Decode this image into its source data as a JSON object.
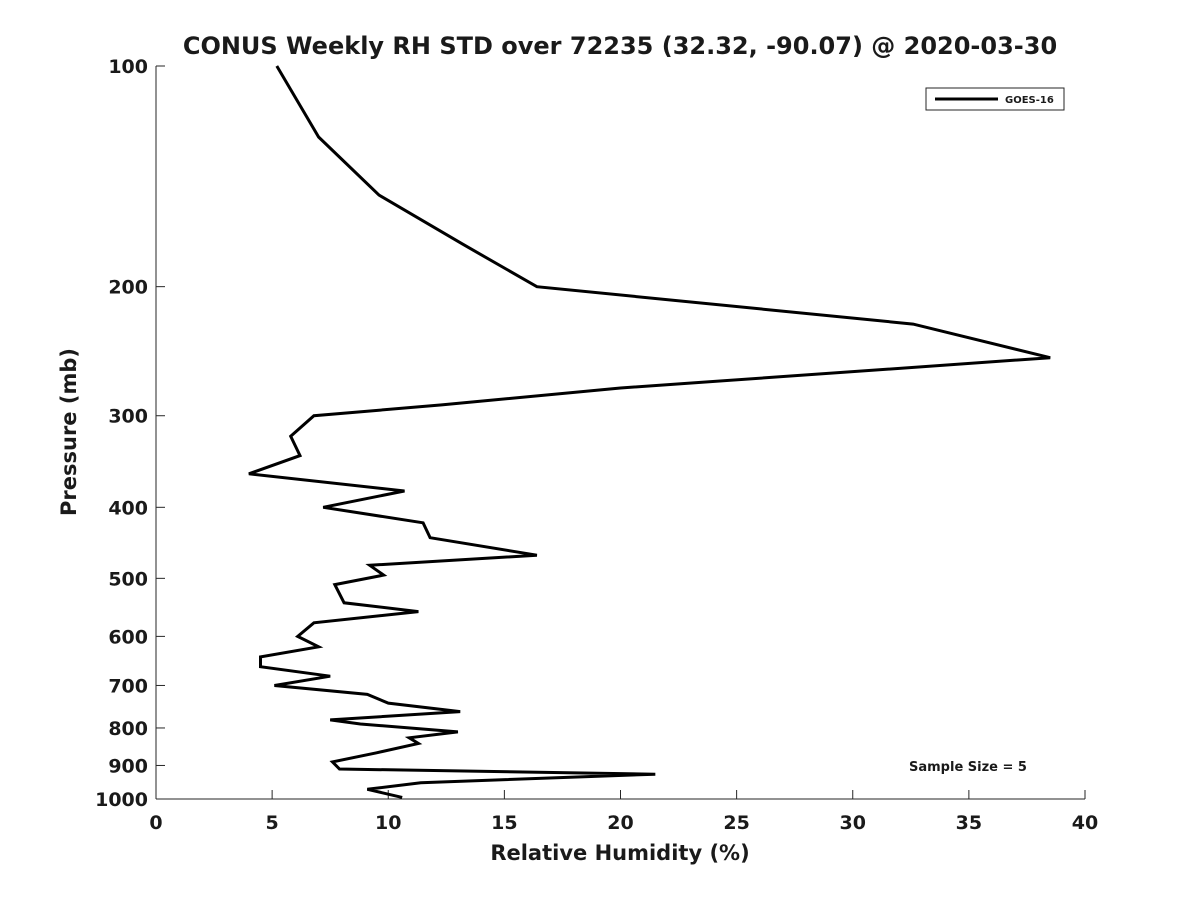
{
  "chart_data": {
    "type": "line",
    "title": "CONUS Weekly RH STD over 72235 (32.32, -90.07) @ 2020-03-30",
    "xlabel": "Relative Humidity (%)",
    "ylabel": "Pressure (mb)",
    "xlim": [
      0,
      40
    ],
    "ylim": [
      100,
      1000
    ],
    "y_scale": "log",
    "y_reversed": true,
    "grid": false,
    "legend_position": "top-right",
    "xticks": [
      "0",
      "5",
      "10",
      "15",
      "20",
      "25",
      "30",
      "35",
      "40"
    ],
    "yticks": [
      "100",
      "200",
      "300",
      "400",
      "500",
      "600",
      "700",
      "800",
      "900",
      "1000"
    ],
    "annotation": "Sample Size = 5",
    "series": [
      {
        "name": "GOES-16",
        "color": "#000000",
        "points": [
          [
            5.2,
            100
          ],
          [
            7.0,
            125
          ],
          [
            9.6,
            150
          ],
          [
            13.2,
            175
          ],
          [
            16.4,
            200
          ],
          [
            32.6,
            225
          ],
          [
            38.5,
            250
          ],
          [
            20.0,
            275
          ],
          [
            12.3,
            290
          ],
          [
            6.8,
            300
          ],
          [
            5.8,
            320
          ],
          [
            6.2,
            340
          ],
          [
            4.0,
            360
          ],
          [
            10.7,
            380
          ],
          [
            7.2,
            400
          ],
          [
            11.5,
            420
          ],
          [
            11.8,
            440
          ],
          [
            16.4,
            465
          ],
          [
            9.2,
            480
          ],
          [
            9.8,
            495
          ],
          [
            7.7,
            510
          ],
          [
            8.1,
            540
          ],
          [
            11.3,
            555
          ],
          [
            6.8,
            575
          ],
          [
            6.1,
            600
          ],
          [
            7.0,
            620
          ],
          [
            4.5,
            640
          ],
          [
            4.5,
            660
          ],
          [
            7.5,
            680
          ],
          [
            5.1,
            700
          ],
          [
            9.1,
            720
          ],
          [
            10.0,
            740
          ],
          [
            13.1,
            760
          ],
          [
            7.5,
            780
          ],
          [
            8.8,
            790
          ],
          [
            13.0,
            810
          ],
          [
            10.9,
            825
          ],
          [
            11.3,
            840
          ],
          [
            9.5,
            865
          ],
          [
            7.6,
            890
          ],
          [
            7.9,
            910
          ],
          [
            21.5,
            925
          ],
          [
            11.4,
            950
          ],
          [
            9.1,
            970
          ],
          [
            10.6,
            995
          ]
        ]
      }
    ]
  }
}
